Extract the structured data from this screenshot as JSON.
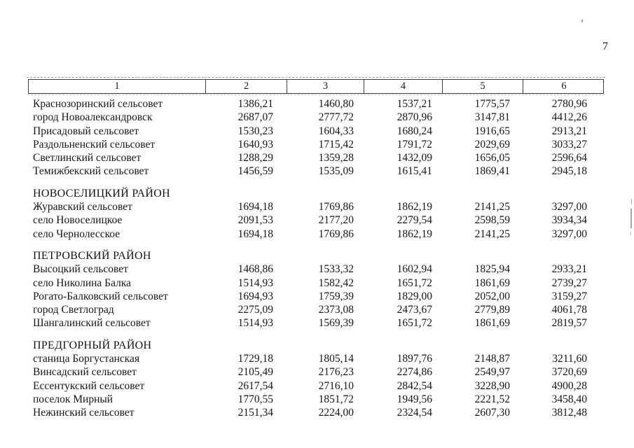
{
  "page": {
    "number": "7"
  },
  "table": {
    "header": {
      "cols": [
        "1",
        "2",
        "3",
        "4",
        "5",
        "6"
      ]
    },
    "sections": [
      {
        "title": null,
        "rows": [
          {
            "name": "Краснозоринский сельсовет",
            "values": [
              "1386,21",
              "1460,80",
              "1537,21",
              "1775,57",
              "2780,96"
            ]
          },
          {
            "name": "город Новоалександровск",
            "values": [
              "2687,07",
              "2777,72",
              "2870,96",
              "3147,81",
              "4412,26"
            ]
          },
          {
            "name": "Присадовый сельсовет",
            "values": [
              "1530,23",
              "1604,33",
              "1680,24",
              "1916,65",
              "2913,21"
            ]
          },
          {
            "name": "Раздольненский сельсовет",
            "values": [
              "1640,93",
              "1715,42",
              "1791,72",
              "2029,69",
              "3033,27"
            ]
          },
          {
            "name": "Светлинский сельсовет",
            "values": [
              "1288,29",
              "1359,28",
              "1432,09",
              "1656,05",
              "2596,64"
            ]
          },
          {
            "name": "Темижбекский сельсовет",
            "values": [
              "1456,59",
              "1535,09",
              "1615,41",
              "1869,41",
              "2945,18"
            ]
          }
        ]
      },
      {
        "title": "НОВОСЕЛИЦКИЙ РАЙОН",
        "rows": [
          {
            "name": "Журавский сельсовет",
            "values": [
              "1694,18",
              "1769,86",
              "1862,19",
              "2141,25",
              "3297,00"
            ]
          },
          {
            "name": "село Новоселицкое",
            "values": [
              "2091,53",
              "2177,20",
              "2279,54",
              "2598,59",
              "3934,34"
            ]
          },
          {
            "name": "село Чернолесское",
            "values": [
              "1694,18",
              "1769,86",
              "1862,19",
              "2141,25",
              "3297,00"
            ]
          }
        ]
      },
      {
        "title": "ПЕТРОВСКИЙ РАЙОН",
        "rows": [
          {
            "name": "Высоцкий сельсовет",
            "values": [
              "1468,86",
              "1533,32",
              "1602,94",
              "1825,94",
              "2933,21"
            ]
          },
          {
            "name": "село Николина Балка",
            "values": [
              "1514,93",
              "1582,42",
              "1651,72",
              "1861,69",
              "2739,27"
            ]
          },
          {
            "name": "Рогато-Балковский сельсовет",
            "values": [
              "1694,93",
              "1759,39",
              "1829,00",
              "2052,00",
              "3159,27"
            ]
          },
          {
            "name": "город Светлоград",
            "values": [
              "2275,09",
              "2373,08",
              "2473,67",
              "2779,89",
              "4061,78"
            ]
          },
          {
            "name": "Шангалинский сельсовет",
            "values": [
              "1514,93",
              "1569,39",
              "1651,72",
              "1861,69",
              "2819,57"
            ]
          }
        ]
      },
      {
        "title": "ПРЕДГОРНЫЙ РАЙОН",
        "rows": [
          {
            "name": "станица Боргустанская",
            "values": [
              "1729,18",
              "1805,14",
              "1897,76",
              "2148,87",
              "3211,60"
            ]
          },
          {
            "name": "Винсадский сельсовет",
            "values": [
              "2105,49",
              "2176,23",
              "2274,86",
              "2549,97",
              "3720,69"
            ]
          },
          {
            "name": "Ессентукский сельсовет",
            "values": [
              "2617,54",
              "2716,10",
              "2842,54",
              "3228,90",
              "4900,28"
            ]
          },
          {
            "name": "поселок Мирный",
            "values": [
              "1770,55",
              "1851,72",
              "1949,56",
              "2221,52",
              "3458,40"
            ]
          },
          {
            "name": "Нежинский сельсовет",
            "values": [
              "2151,34",
              "2224,00",
              "2324,54",
              "2607,30",
              "3812,48"
            ]
          }
        ]
      }
    ]
  }
}
